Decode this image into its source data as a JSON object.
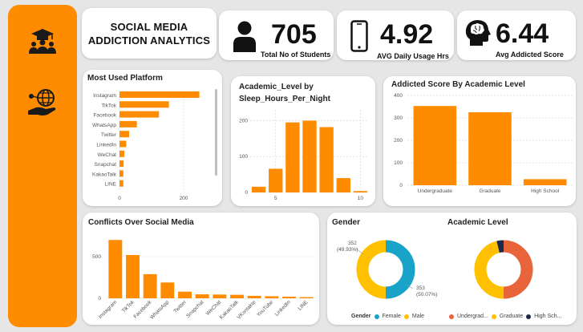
{
  "header": {
    "title_line1": "SOCIAL MEDIA",
    "title_line2": "ADDICTION ANALYTICS"
  },
  "kpis": [
    {
      "value": "705",
      "label": "Total No of Students",
      "icon": "person-icon"
    },
    {
      "value": "4.92",
      "label": "AVG Daily Usage Hrs",
      "icon": "smartphone-icon"
    },
    {
      "value": "6.44",
      "label": "Avg Addicted Score",
      "icon": "brain-head-icon"
    }
  ],
  "sidebar": {
    "icons": [
      "graduation-students-icon",
      "hand-globe-icon"
    ]
  },
  "colors": {
    "orange": "#ff8c00",
    "teal": "#1aa3c8",
    "yellow": "#ffc000",
    "navy": "#1b2a4a",
    "grid": "#e3e3e3"
  },
  "chart_data": [
    {
      "id": "most_used_platform",
      "type": "bar",
      "orientation": "horizontal",
      "title": "Most Used Platform",
      "categories": [
        "Instagram",
        "TikTok",
        "Facebook",
        "WhatsApp",
        "Twitter",
        "LinkedIn",
        "WeChat",
        "Snapchat",
        "KakaoTalk",
        "LINE"
      ],
      "values": [
        249,
        154,
        123,
        54,
        30,
        21,
        15,
        13,
        12,
        12
      ],
      "ticks": [
        0,
        200
      ],
      "xlim": [
        0,
        260
      ]
    },
    {
      "id": "academic_level_sleep",
      "type": "bar",
      "title_line1": "Academic_Level by",
      "title_line2": "Sleep_Hours_Per_Night",
      "x": [
        4,
        5,
        6,
        7,
        8,
        9,
        10
      ],
      "values": [
        16,
        66,
        195,
        200,
        182,
        40,
        4
      ],
      "xticks": [
        5,
        10
      ],
      "yticks": [
        0,
        100,
        200
      ],
      "ylim": [
        0,
        230
      ]
    },
    {
      "id": "addicted_score_by_level",
      "type": "bar",
      "title": "Addicted Score By Academic Level",
      "categories": [
        "Undergraduate",
        "Graduate",
        "High School"
      ],
      "values": [
        353,
        325,
        27
      ],
      "yticks": [
        0,
        100,
        200,
        300,
        400
      ],
      "ylim": [
        0,
        400
      ]
    },
    {
      "id": "conflicts_over_social_media",
      "type": "bar",
      "title": "Conflicts Over Social Media",
      "categories": [
        "Instagram",
        "TikTok",
        "Facebook",
        "WhatsApp",
        "Twitter",
        "Snapchat",
        "WeChat",
        "KakaoTalk",
        "VKontakte",
        "YouTube",
        "LinkedIn",
        "LINE"
      ],
      "values": [
        700,
        520,
        290,
        190,
        80,
        48,
        45,
        42,
        30,
        25,
        20,
        14
      ],
      "yticks": [
        0,
        500
      ],
      "ylim": [
        0,
        760
      ]
    },
    {
      "id": "gender",
      "type": "pie",
      "title": "Gender",
      "labels": [
        "Female",
        "Male"
      ],
      "values": [
        353,
        352
      ],
      "label_texts": [
        {
          "value": "353",
          "pct": "(50.07%)"
        },
        {
          "value": "352",
          "pct": "(49.93%)"
        }
      ],
      "legend_title": "Gender",
      "colors": [
        "#1aa3c8",
        "#ffc000"
      ]
    },
    {
      "id": "academic_level",
      "type": "pie",
      "title": "Academic Level",
      "labels": [
        "Undergrad...",
        "Graduate",
        "High Sch..."
      ],
      "values": [
        353,
        325,
        27
      ],
      "colors": [
        "#e8643a",
        "#ffc000",
        "#1b2a4a"
      ]
    }
  ]
}
